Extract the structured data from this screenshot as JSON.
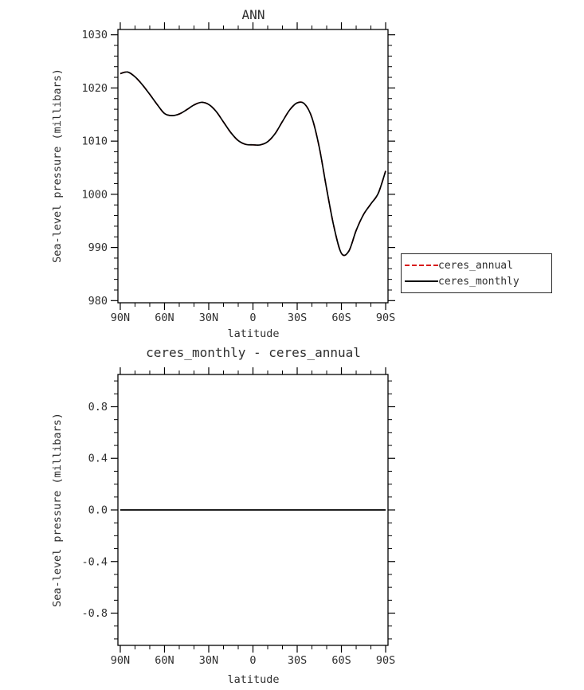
{
  "figure": {
    "background": "#ffffff",
    "text_color": "#2f2f2f",
    "frame_color": "#000000"
  },
  "chart_data": [
    {
      "type": "line",
      "title": "ANN",
      "xlabel": "latitude",
      "ylabel": "Sea-level pressure (millibars)",
      "xlim": [
        91.6,
        -91.6
      ],
      "ylim": [
        979.6,
        1031
      ],
      "xticks": {
        "values": [
          90,
          60,
          30,
          0,
          -30,
          -60,
          -90
        ],
        "labels": [
          "90N",
          "60N",
          "30N",
          "0",
          "30S",
          "60S",
          "90S"
        ]
      },
      "yticks": {
        "values": [
          980,
          990,
          1000,
          1010,
          1020,
          1030
        ],
        "labels": [
          "980",
          "990",
          "1000",
          "1010",
          "1020",
          "1030"
        ]
      },
      "x_minor_step": 10,
      "y_minor_step": 2,
      "grid": false,
      "x": [
        90,
        85,
        80,
        75,
        70,
        65,
        60,
        55,
        50,
        45,
        40,
        35,
        30,
        25,
        20,
        15,
        10,
        5,
        0,
        -5,
        -10,
        -15,
        -20,
        -25,
        -30,
        -35,
        -40,
        -45,
        -50,
        -55,
        -60,
        -65,
        -70,
        -75,
        -80,
        -85,
        -90
      ],
      "series": [
        {
          "name": "ceres_annual",
          "color": "#d81b1b",
          "style": "dashed",
          "values": [
            1022.7,
            1023.0,
            1022.1,
            1020.6,
            1018.8,
            1016.9,
            1015.2,
            1014.8,
            1015.1,
            1015.9,
            1016.8,
            1017.3,
            1016.9,
            1015.6,
            1013.6,
            1011.6,
            1010.1,
            1009.4,
            1009.3,
            1009.3,
            1009.9,
            1011.4,
            1013.7,
            1015.9,
            1017.2,
            1017.0,
            1014.4,
            1008.8,
            1001.0,
            993.8,
            988.9,
            989.3,
            993.2,
            996.2,
            998.2,
            1000.2,
            1004.4
          ]
        },
        {
          "name": "ceres_monthly",
          "color": "#000000",
          "style": "solid",
          "values": [
            1022.7,
            1023.0,
            1022.1,
            1020.6,
            1018.8,
            1016.9,
            1015.2,
            1014.8,
            1015.1,
            1015.9,
            1016.8,
            1017.3,
            1016.9,
            1015.6,
            1013.6,
            1011.6,
            1010.1,
            1009.4,
            1009.3,
            1009.3,
            1009.9,
            1011.4,
            1013.7,
            1015.9,
            1017.2,
            1017.0,
            1014.4,
            1008.8,
            1001.0,
            993.8,
            988.9,
            989.3,
            993.2,
            996.2,
            998.2,
            1000.2,
            1004.4
          ]
        }
      ],
      "legend": {
        "position": "outside-right",
        "entries": [
          {
            "label": "ceres_annual",
            "color": "#d81b1b",
            "style": "dashed"
          },
          {
            "label": "ceres_monthly",
            "color": "#000000",
            "style": "solid"
          }
        ]
      }
    },
    {
      "type": "line",
      "title": "ceres_monthly - ceres_annual",
      "xlabel": "latitude",
      "ylabel": "Sea-level pressure (millibars)",
      "xlim": [
        91.6,
        -91.6
      ],
      "ylim": [
        -1.05,
        1.05
      ],
      "xticks": {
        "values": [
          90,
          60,
          30,
          0,
          -30,
          -60,
          -90
        ],
        "labels": [
          "90N",
          "60N",
          "30N",
          "0",
          "30S",
          "60S",
          "90S"
        ]
      },
      "yticks": {
        "values": [
          -0.8,
          -0.4,
          0,
          0.4,
          0.8
        ],
        "labels": [
          "-0.8",
          "-0.4",
          "0.0",
          "0.4",
          "0.8"
        ]
      },
      "x_minor_step": 10,
      "y_minor_step": 0.1,
      "grid": false,
      "x": [
        90,
        85,
        80,
        75,
        70,
        65,
        60,
        55,
        50,
        45,
        40,
        35,
        30,
        25,
        20,
        15,
        10,
        5,
        0,
        -5,
        -10,
        -15,
        -20,
        -25,
        -30,
        -35,
        -40,
        -45,
        -50,
        -55,
        -60,
        -65,
        -70,
        -75,
        -80,
        -85,
        -90
      ],
      "series": [
        {
          "name": "ceres_monthly - ceres_annual",
          "color": "#000000",
          "style": "solid",
          "values": [
            0,
            0,
            0,
            0,
            0,
            0,
            0,
            0,
            0,
            0,
            0,
            0,
            0,
            0,
            0,
            0,
            0,
            0,
            0,
            0,
            0,
            0,
            0,
            0,
            0,
            0,
            0,
            0,
            0,
            0,
            0,
            0,
            0,
            0,
            0,
            0,
            0
          ]
        }
      ],
      "legend": {
        "position": "none",
        "entries": []
      }
    }
  ]
}
